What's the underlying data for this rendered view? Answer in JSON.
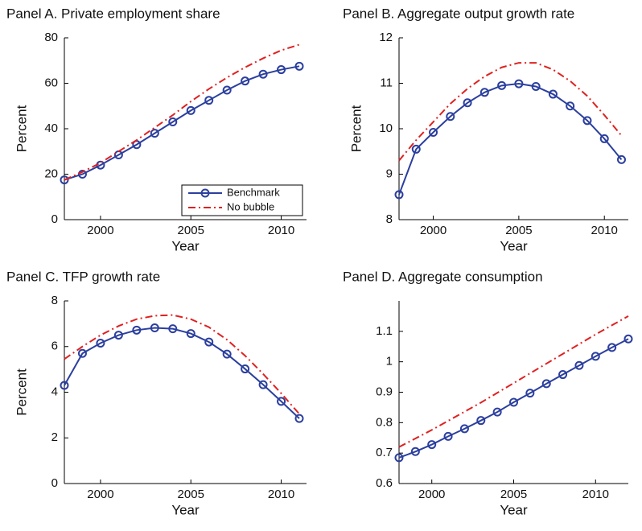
{
  "chart_data": [
    {
      "type": "line",
      "title": "Panel A. Private employment share",
      "xlabel": "Year",
      "ylabel": "Percent",
      "x": [
        1998,
        1999,
        2000,
        2001,
        2002,
        2003,
        2004,
        2005,
        2006,
        2007,
        2008,
        2009,
        2010,
        2011
      ],
      "series": [
        {
          "name": "Benchmark",
          "color": "#2b3f9e",
          "marker": "circle",
          "values": [
            17.5,
            20,
            24,
            28.5,
            33,
            38,
            43,
            48,
            52.5,
            57,
            61,
            64,
            66,
            67.5
          ]
        },
        {
          "name": "No bubble",
          "color": "#e02020",
          "linestyle": "dashdot",
          "values": [
            17.5,
            21,
            25,
            30,
            35,
            40.5,
            46,
            52,
            57.5,
            62.5,
            67,
            71,
            74.5,
            77
          ]
        }
      ],
      "xlim": [
        1998,
        2011.4
      ],
      "xticks": [
        2000,
        2005,
        2010
      ],
      "ylim": [
        0,
        80
      ],
      "yticks": [
        0,
        20,
        40,
        60,
        80
      ],
      "legend": "lower right"
    },
    {
      "type": "line",
      "title": "Panel B. Aggregate output growth rate",
      "xlabel": "Year",
      "ylabel": "Percent",
      "x": [
        1998,
        1999,
        2000,
        2001,
        2002,
        2003,
        2004,
        2005,
        2006,
        2007,
        2008,
        2009,
        2010,
        2011
      ],
      "series": [
        {
          "name": "Benchmark",
          "color": "#2b3f9e",
          "marker": "circle",
          "values": [
            8.55,
            9.55,
            9.92,
            10.27,
            10.57,
            10.8,
            10.95,
            10.99,
            10.93,
            10.76,
            10.5,
            10.18,
            9.78,
            9.32
          ]
        },
        {
          "name": "No bubble",
          "color": "#e02020",
          "linestyle": "dashdot",
          "values": [
            9.3,
            9.75,
            10.15,
            10.55,
            10.88,
            11.15,
            11.35,
            11.45,
            11.45,
            11.3,
            11.05,
            10.72,
            10.3,
            9.85
          ]
        }
      ],
      "xlim": [
        1998,
        2011.4
      ],
      "xticks": [
        2000,
        2005,
        2010
      ],
      "ylim": [
        8,
        12
      ],
      "yticks": [
        8,
        9,
        10,
        11,
        12
      ]
    },
    {
      "type": "line",
      "title": "Panel C. TFP growth rate",
      "xlabel": "Year",
      "ylabel": "Percent",
      "x": [
        1998,
        1999,
        2000,
        2001,
        2002,
        2003,
        2004,
        2005,
        2006,
        2007,
        2008,
        2009,
        2010,
        2011
      ],
      "series": [
        {
          "name": "Benchmark",
          "color": "#2b3f9e",
          "marker": "circle",
          "values": [
            4.3,
            5.7,
            6.15,
            6.5,
            6.72,
            6.82,
            6.78,
            6.57,
            6.2,
            5.67,
            5.02,
            4.33,
            3.6,
            2.85
          ]
        },
        {
          "name": "No bubble",
          "color": "#e02020",
          "linestyle": "dashdot",
          "values": [
            5.45,
            6.0,
            6.5,
            6.9,
            7.2,
            7.35,
            7.38,
            7.2,
            6.85,
            6.3,
            5.6,
            4.8,
            3.95,
            3.05
          ]
        }
      ],
      "xlim": [
        1998,
        2011.4
      ],
      "xticks": [
        2000,
        2005,
        2010
      ],
      "ylim": [
        0,
        8
      ],
      "yticks": [
        0,
        2,
        4,
        6,
        8
      ]
    },
    {
      "type": "line",
      "title": "Panel D. Aggregate consumption",
      "xlabel": "Year",
      "x": [
        1998,
        1999,
        2000,
        2001,
        2002,
        2003,
        2004,
        2005,
        2006,
        2007,
        2008,
        2009,
        2010,
        2011,
        2012
      ],
      "series": [
        {
          "name": "Benchmark",
          "color": "#2b3f9e",
          "marker": "circle",
          "values": [
            0.685,
            0.705,
            0.728,
            0.755,
            0.78,
            0.807,
            0.835,
            0.867,
            0.897,
            0.928,
            0.958,
            0.988,
            1.018,
            1.047,
            1.075
          ]
        },
        {
          "name": "No bubble",
          "color": "#e02020",
          "linestyle": "dashdot",
          "values": [
            0.72,
            0.748,
            0.776,
            0.806,
            0.836,
            0.866,
            0.898,
            0.93,
            0.962,
            0.994,
            1.026,
            1.058,
            1.09,
            1.12,
            1.15
          ]
        }
      ],
      "xlim": [
        1998,
        2012
      ],
      "xticks": [
        2000,
        2005,
        2010
      ],
      "ylim": [
        0.6,
        1.2
      ],
      "yticks": [
        0.6,
        0.7,
        0.8,
        0.9,
        1,
        1.1
      ]
    }
  ]
}
